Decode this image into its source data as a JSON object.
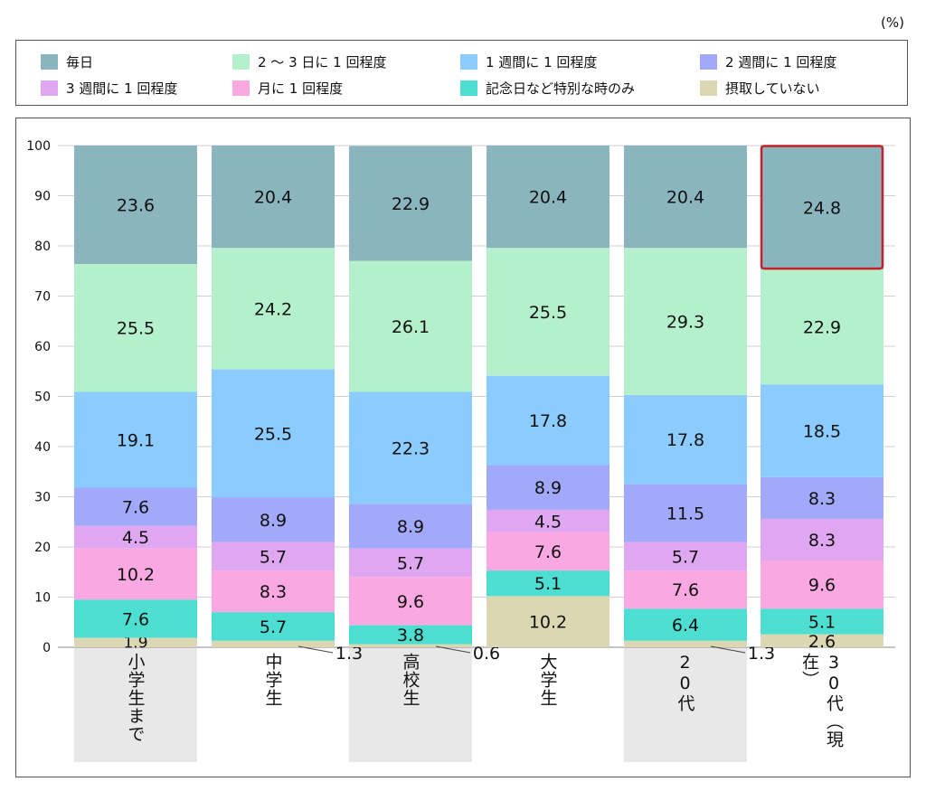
{
  "unit_label": "(%)",
  "legend": [
    {
      "label": "毎日",
      "color": "#8ab4be"
    },
    {
      "label": "2 ～ 3 日に 1 回程度",
      "color": "#b5f0cd"
    },
    {
      "label": "1 週間に 1 回程度",
      "color": "#8ccbfd"
    },
    {
      "label": "2 週間に 1 回程度",
      "color": "#a2a9fa"
    },
    {
      "label": "3 週間に 1 回程度",
      "color": "#dfa7f0"
    },
    {
      "label": "月に 1 回程度",
      "color": "#f9a8e2"
    },
    {
      "label": "記念日など特別な時のみ",
      "color": "#4cded0"
    },
    {
      "label": "摂取していない",
      "color": "#dcd7b3"
    }
  ],
  "chart_data": {
    "type": "bar",
    "stacked": true,
    "categories": [
      "小学生まで",
      "中学生",
      "高校生",
      "大学生",
      "20代",
      "30代（現在）"
    ],
    "ylim": [
      0,
      100
    ],
    "yticks": [
      0,
      10,
      20,
      30,
      40,
      50,
      60,
      70,
      80,
      90,
      100
    ],
    "grid": true,
    "legend_position": "top",
    "highlight": {
      "category": "30代（現在）",
      "series": "毎日",
      "color": "#c8202a"
    },
    "series": [
      {
        "name": "摂取していない",
        "color": "#dcd7b3",
        "values": [
          1.9,
          1.3,
          0.6,
          10.2,
          1.3,
          2.6
        ]
      },
      {
        "name": "記念日など特別な時のみ",
        "color": "#4cded0",
        "values": [
          7.6,
          5.7,
          3.8,
          5.1,
          6.4,
          5.1
        ]
      },
      {
        "name": "月に 1 回程度",
        "color": "#f9a8e2",
        "values": [
          10.2,
          8.3,
          9.6,
          7.6,
          7.6,
          9.6
        ]
      },
      {
        "name": "3 週間に 1 回程度",
        "color": "#dfa7f0",
        "values": [
          4.5,
          5.7,
          5.7,
          4.5,
          5.7,
          8.3
        ]
      },
      {
        "name": "2 週間に 1 回程度",
        "color": "#a2a9fa",
        "values": [
          7.6,
          8.9,
          8.9,
          8.9,
          11.5,
          8.3
        ]
      },
      {
        "name": "1 週間に 1 回程度",
        "color": "#8ccbfd",
        "values": [
          19.1,
          25.5,
          22.3,
          17.8,
          17.8,
          18.5
        ]
      },
      {
        "name": "2 ～ 3 日に 1 回程度",
        "color": "#b5f0cd",
        "values": [
          25.5,
          24.2,
          26.1,
          25.5,
          29.3,
          22.9
        ]
      },
      {
        "name": "毎日",
        "color": "#8ab4be",
        "values": [
          23.6,
          20.4,
          22.9,
          20.4,
          20.4,
          24.8
        ]
      }
    ]
  }
}
